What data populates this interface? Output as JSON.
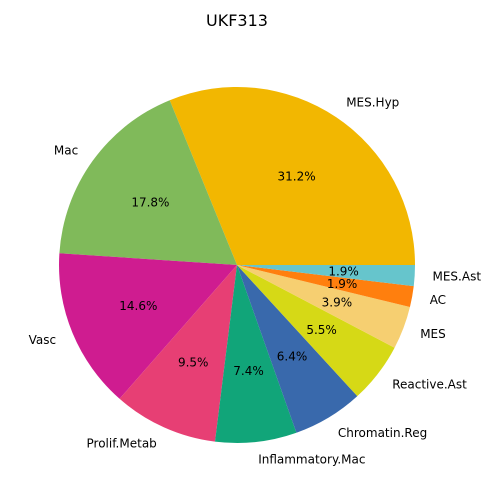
{
  "chart_data": {
    "type": "pie",
    "title": "UKF313",
    "start_angle_deg": 0,
    "direction": "counterclockwise",
    "slices": [
      {
        "label": "MES.Hyp",
        "pct_label": "31.2%",
        "value": 31.2,
        "color": "#f2b701"
      },
      {
        "label": "Mac",
        "pct_label": "17.8%",
        "value": 17.8,
        "color": "#80ba5a"
      },
      {
        "label": "Vasc",
        "pct_label": "14.6%",
        "value": 14.6,
        "color": "#cf1c90"
      },
      {
        "label": "Prolif.Metab",
        "pct_label": "9.5%",
        "value": 9.5,
        "color": "#e73f74"
      },
      {
        "label": "Inflammatory.Mac",
        "pct_label": "7.4%",
        "value": 7.4,
        "color": "#11a579"
      },
      {
        "label": "Chromatin.Reg",
        "pct_label": "6.4%",
        "value": 6.4,
        "color": "#3969ac"
      },
      {
        "label": "Reactive.Ast",
        "pct_label": "5.5%",
        "value": 5.5,
        "color": "#d6d916"
      },
      {
        "label": "MES",
        "pct_label": "3.9%",
        "value": 3.9,
        "color": "#f6cf71"
      },
      {
        "label": "AC",
        "pct_label": "1.9%",
        "value": 1.9,
        "color": "#ff7f0e"
      },
      {
        "label": "MES.Ast",
        "pct_label": "1.9%",
        "value": 1.9,
        "color": "#66c5cc"
      }
    ]
  }
}
